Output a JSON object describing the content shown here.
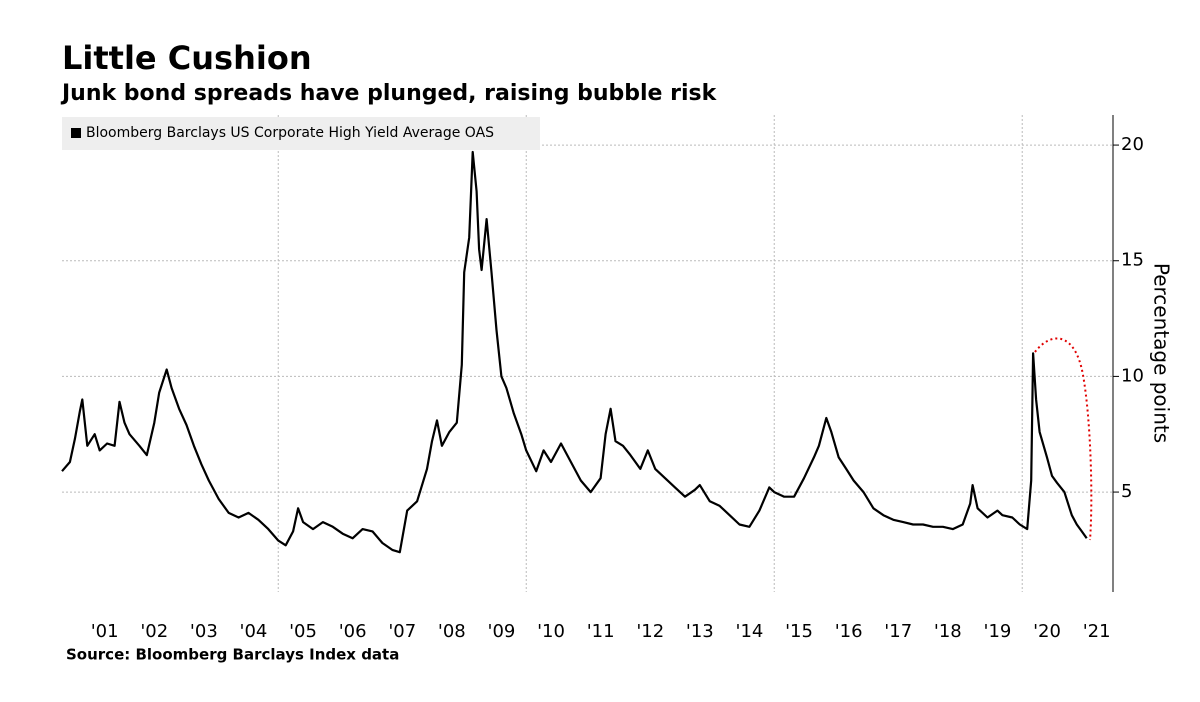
{
  "chart_data": {
    "type": "line",
    "title": "Little Cushion",
    "subtitle": "Junk bond spreads have plunged, raising bubble risk",
    "y_label": "Percentage points",
    "source": "Source: Bloomberg Barclays Index data",
    "x": [
      2000.64,
      2000.8,
      2000.9,
      2001.0,
      2001.05,
      2001.15,
      2001.3,
      2001.4,
      2001.55,
      2001.7,
      2001.8,
      2001.9,
      2002.0,
      2002.2,
      2002.35,
      2002.5,
      2002.6,
      2002.75,
      2002.85,
      2003.0,
      2003.15,
      2003.3,
      2003.45,
      2003.6,
      2003.8,
      2004.0,
      2004.2,
      2004.4,
      2004.6,
      2004.8,
      2005.0,
      2005.15,
      2005.3,
      2005.4,
      2005.5,
      2005.7,
      2005.9,
      2006.1,
      2006.3,
      2006.5,
      2006.7,
      2006.9,
      2007.1,
      2007.3,
      2007.45,
      2007.6,
      2007.8,
      2008.0,
      2008.1,
      2008.2,
      2008.3,
      2008.45,
      2008.6,
      2008.7,
      2008.75,
      2008.85,
      2008.92,
      2009.0,
      2009.05,
      2009.1,
      2009.2,
      2009.3,
      2009.4,
      2009.5,
      2009.6,
      2009.75,
      2009.9,
      2010.0,
      2010.2,
      2010.35,
      2010.5,
      2010.7,
      2010.9,
      2011.1,
      2011.3,
      2011.5,
      2011.6,
      2011.7,
      2011.8,
      2011.95,
      2012.1,
      2012.3,
      2012.45,
      2012.6,
      2012.8,
      2013.0,
      2013.2,
      2013.4,
      2013.5,
      2013.7,
      2013.9,
      2014.1,
      2014.3,
      2014.5,
      2014.7,
      2014.9,
      2015.0,
      2015.2,
      2015.4,
      2015.6,
      2015.8,
      2015.9,
      2016.05,
      2016.15,
      2016.3,
      2016.45,
      2016.6,
      2016.8,
      2017.0,
      2017.2,
      2017.4,
      2017.6,
      2017.8,
      2018.0,
      2018.2,
      2018.4,
      2018.6,
      2018.8,
      2018.95,
      2019.0,
      2019.1,
      2019.3,
      2019.5,
      2019.6,
      2019.8,
      2019.95,
      2020.1,
      2020.18,
      2020.22,
      2020.28,
      2020.35,
      2020.5,
      2020.6,
      2020.7,
      2020.85,
      2021.0,
      2021.1,
      2021.2,
      2021.3
    ],
    "series": [
      {
        "name": "Bloomberg Barclays US Corporate High Yield Average OAS",
        "color": "#000000",
        "values": [
          5.9,
          6.3,
          7.3,
          8.5,
          9.0,
          7.0,
          7.5,
          6.8,
          7.1,
          7.0,
          8.9,
          8.0,
          7.5,
          7.0,
          6.6,
          8.0,
          9.3,
          10.3,
          9.5,
          8.6,
          7.9,
          7.0,
          6.2,
          5.5,
          4.7,
          4.1,
          3.9,
          4.1,
          3.8,
          3.4,
          2.9,
          2.7,
          3.3,
          4.3,
          3.7,
          3.4,
          3.7,
          3.5,
          3.2,
          3.0,
          3.4,
          3.3,
          2.8,
          2.5,
          2.4,
          4.2,
          4.6,
          6.0,
          7.2,
          8.1,
          7.0,
          7.6,
          8.0,
          10.5,
          14.5,
          16.0,
          19.7,
          18.0,
          15.5,
          14.6,
          16.8,
          14.5,
          12.0,
          10.0,
          9.5,
          8.4,
          7.5,
          6.8,
          5.9,
          6.8,
          6.3,
          7.1,
          6.3,
          5.5,
          5.0,
          5.6,
          7.5,
          8.6,
          7.2,
          7.0,
          6.6,
          6.0,
          6.8,
          6.0,
          5.6,
          5.2,
          4.8,
          5.1,
          5.3,
          4.6,
          4.4,
          4.0,
          3.6,
          3.5,
          4.2,
          5.2,
          5.0,
          4.8,
          4.8,
          5.6,
          6.5,
          7.0,
          8.2,
          7.6,
          6.5,
          6.0,
          5.5,
          5.0,
          4.3,
          4.0,
          3.8,
          3.7,
          3.6,
          3.6,
          3.5,
          3.5,
          3.4,
          3.6,
          4.5,
          5.3,
          4.3,
          3.9,
          4.2,
          4.0,
          3.9,
          3.6,
          3.4,
          5.5,
          11.0,
          9.0,
          7.6,
          6.5,
          5.7,
          5.4,
          5.0,
          4.0,
          3.6,
          3.3,
          3.0
        ]
      }
    ],
    "xlim": [
      2000.64,
      2021.83
    ],
    "xticks": [
      {
        "value": 2001,
        "label": "'01"
      },
      {
        "value": 2002,
        "label": "'02"
      },
      {
        "value": 2003,
        "label": "'03"
      },
      {
        "value": 2004,
        "label": "'04"
      },
      {
        "value": 2005,
        "label": "'05"
      },
      {
        "value": 2006,
        "label": "'06"
      },
      {
        "value": 2007,
        "label": "'07"
      },
      {
        "value": 2008,
        "label": "'08"
      },
      {
        "value": 2009,
        "label": "'09"
      },
      {
        "value": 2010,
        "label": "'10"
      },
      {
        "value": 2011,
        "label": "'11"
      },
      {
        "value": 2012,
        "label": "'12"
      },
      {
        "value": 2013,
        "label": "'13"
      },
      {
        "value": 2014,
        "label": "'14"
      },
      {
        "value": 2015,
        "label": "'15"
      },
      {
        "value": 2016,
        "label": "'16"
      },
      {
        "value": 2017,
        "label": "'17"
      },
      {
        "value": 2018,
        "label": "'18"
      },
      {
        "value": 2019,
        "label": "'19"
      },
      {
        "value": 2020,
        "label": "'20"
      },
      {
        "value": 2021,
        "label": "'21"
      }
    ],
    "ylim": [
      0.68,
      21.3
    ],
    "yticks": [
      5,
      10,
      15,
      20
    ],
    "grid": true,
    "legend": "top-left"
  }
}
